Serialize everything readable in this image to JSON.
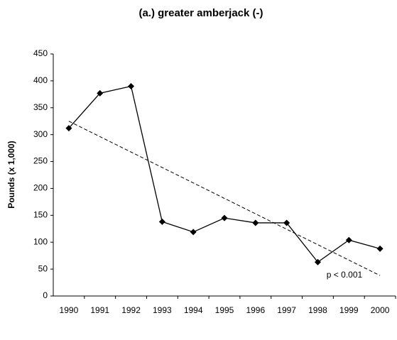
{
  "chart_data": {
    "type": "line",
    "title": "(a.) greater amberjack (-)",
    "ylabel": "Pounds (x 1,000)",
    "categories": [
      "1990",
      "1991",
      "1992",
      "1993",
      "1994",
      "1995",
      "1996",
      "1997",
      "1998",
      "1999",
      "2000"
    ],
    "values": [
      312,
      377,
      390,
      138,
      119,
      145,
      136,
      136,
      63,
      104,
      88
    ],
    "color": "#000000",
    "trend": [
      325,
      38
    ],
    "annotation": "p < 0.001",
    "ylim": [
      0,
      450
    ],
    "yticks": [
      0,
      50,
      100,
      150,
      200,
      250,
      300,
      350,
      400,
      450
    ],
    "grid": false
  }
}
